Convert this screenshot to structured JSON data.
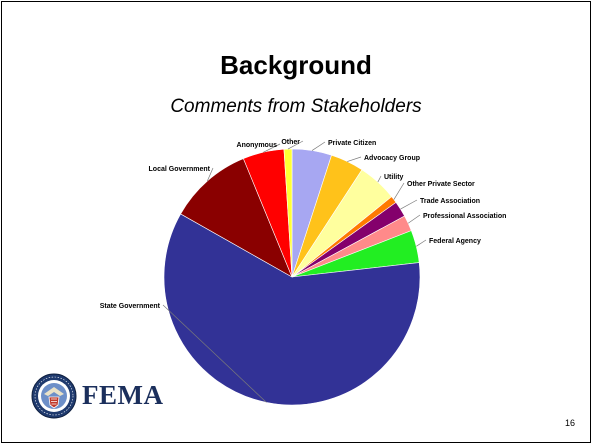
{
  "slide": {
    "title": "Background",
    "subtitle": "Comments from Stakeholders",
    "page_number": "16",
    "logo_text": "FEMA"
  },
  "chart_data": {
    "type": "pie",
    "title": "Comments from Stakeholders",
    "start_category": "Private Citizen",
    "direction": "clockwise",
    "slices": [
      {
        "label": "Private Citizen",
        "value": 5.0,
        "color": "#a7a7f2"
      },
      {
        "label": "Advocacy Group",
        "value": 4.2,
        "color": "#ffc21a"
      },
      {
        "label": "Utility",
        "value": 5.0,
        "color": "#ffff9e"
      },
      {
        "label": "Other Private Sector",
        "value": 0.9,
        "color": "#ff7a00"
      },
      {
        "label": "Trade Association",
        "value": 2.0,
        "color": "#84006c"
      },
      {
        "label": "Professional Association",
        "value": 2.0,
        "color": "#ff8a8a"
      },
      {
        "label": "Federal Agency",
        "value": 4.1,
        "color": "#22ee22"
      },
      {
        "label": "State Government",
        "value": 60.0,
        "color": "#323296"
      },
      {
        "label": "Local Government",
        "value": 10.6,
        "color": "#8a0000"
      },
      {
        "label": "Anonymous",
        "value": 5.2,
        "color": "#ff0000"
      },
      {
        "label": "Other",
        "value": 1.0,
        "color": "#ffff33"
      }
    ]
  }
}
